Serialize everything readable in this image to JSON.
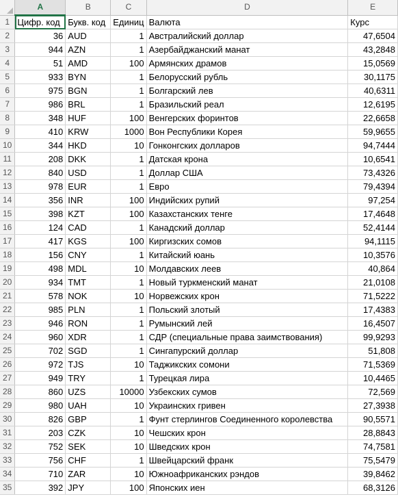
{
  "columns": [
    "A",
    "B",
    "C",
    "D",
    "E"
  ],
  "rows": [
    [
      "Цифр. код",
      "Букв. код",
      "Единиц",
      "Валюта",
      "Курс"
    ],
    [
      "36",
      "AUD",
      "1",
      "Австралийский доллар",
      "47,6504"
    ],
    [
      "944",
      "AZN",
      "1",
      "Азербайджанский манат",
      "43,2848"
    ],
    [
      "51",
      "AMD",
      "100",
      "Армянских драмов",
      "15,0569"
    ],
    [
      "933",
      "BYN",
      "1",
      "Белорусский рубль",
      "30,1175"
    ],
    [
      "975",
      "BGN",
      "1",
      "Болгарский лев",
      "40,6311"
    ],
    [
      "986",
      "BRL",
      "1",
      "Бразильский реал",
      "12,6195"
    ],
    [
      "348",
      "HUF",
      "100",
      "Венгерских форинтов",
      "22,6658"
    ],
    [
      "410",
      "KRW",
      "1000",
      "Вон Республики Корея",
      "59,9655"
    ],
    [
      "344",
      "HKD",
      "10",
      "Гонконгских долларов",
      "94,7444"
    ],
    [
      "208",
      "DKK",
      "1",
      "Датская крона",
      "10,6541"
    ],
    [
      "840",
      "USD",
      "1",
      "Доллар США",
      "73,4326"
    ],
    [
      "978",
      "EUR",
      "1",
      "Евро",
      "79,4394"
    ],
    [
      "356",
      "INR",
      "100",
      "Индийских рупий",
      "97,254"
    ],
    [
      "398",
      "KZT",
      "100",
      "Казахстанских тенге",
      "17,4648"
    ],
    [
      "124",
      "CAD",
      "1",
      "Канадский доллар",
      "52,4144"
    ],
    [
      "417",
      "KGS",
      "100",
      "Киргизских сомов",
      "94,1115"
    ],
    [
      "156",
      "CNY",
      "1",
      "Китайский юань",
      "10,3576"
    ],
    [
      "498",
      "MDL",
      "10",
      "Молдавских леев",
      "40,864"
    ],
    [
      "934",
      "TMT",
      "1",
      "Новый туркменский манат",
      "21,0108"
    ],
    [
      "578",
      "NOK",
      "10",
      "Норвежских крон",
      "71,5222"
    ],
    [
      "985",
      "PLN",
      "1",
      "Польский злотый",
      "17,4383"
    ],
    [
      "946",
      "RON",
      "1",
      "Румынский лей",
      "16,4507"
    ],
    [
      "960",
      "XDR",
      "1",
      "СДР (специальные права заимствования)",
      "99,9293"
    ],
    [
      "702",
      "SGD",
      "1",
      "Сингапурский доллар",
      "51,808"
    ],
    [
      "972",
      "TJS",
      "10",
      "Таджикских сомони",
      "71,5369"
    ],
    [
      "949",
      "TRY",
      "1",
      "Турецкая лира",
      "10,4465"
    ],
    [
      "860",
      "UZS",
      "10000",
      "Узбекских сумов",
      "72,569"
    ],
    [
      "980",
      "UAH",
      "10",
      "Украинских гривен",
      "27,3938"
    ],
    [
      "826",
      "GBP",
      "1",
      "Фунт стерлингов Соединенного королевства",
      "90,5571"
    ],
    [
      "203",
      "CZK",
      "10",
      "Чешских крон",
      "28,8843"
    ],
    [
      "752",
      "SEK",
      "10",
      "Шведских крон",
      "74,7581"
    ],
    [
      "756",
      "CHF",
      "1",
      "Швейцарский франк",
      "75,5479"
    ],
    [
      "710",
      "ZAR",
      "10",
      "Южноафриканских рэндов",
      "39,8462"
    ],
    [
      "392",
      "JPY",
      "100",
      "Японских иен",
      "68,3126"
    ]
  ],
  "selected_column": "A",
  "selected_cell": "A1"
}
